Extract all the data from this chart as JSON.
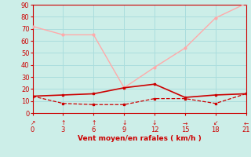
{
  "x": [
    0,
    3,
    6,
    9,
    12,
    15,
    18,
    21
  ],
  "line_rafales_y": [
    72,
    65,
    65,
    21,
    38,
    54,
    79,
    91
  ],
  "line_moyen_y": [
    14,
    15,
    16,
    21,
    24,
    13,
    15,
    16
  ],
  "line_min_y": [
    14,
    8,
    7,
    7,
    12,
    12,
    8,
    16
  ],
  "color_rafales": "#ffaaaa",
  "color_moyen": "#cc0000",
  "color_min": "#cc0000",
  "bg_color": "#cceee8",
  "grid_color": "#aadddd",
  "axis_color": "#cc0000",
  "xlabel": "Vent moyen/en rafales ( km/h )",
  "ylim": [
    0,
    90
  ],
  "xlim": [
    0,
    21
  ],
  "yticks": [
    0,
    10,
    20,
    30,
    40,
    50,
    60,
    70,
    80,
    90
  ],
  "xticks": [
    0,
    3,
    6,
    9,
    12,
    15,
    18,
    21
  ],
  "wind_arrows": [
    "↗",
    "↑",
    "↑",
    "↓",
    "↓",
    "→",
    "↙",
    "←"
  ]
}
